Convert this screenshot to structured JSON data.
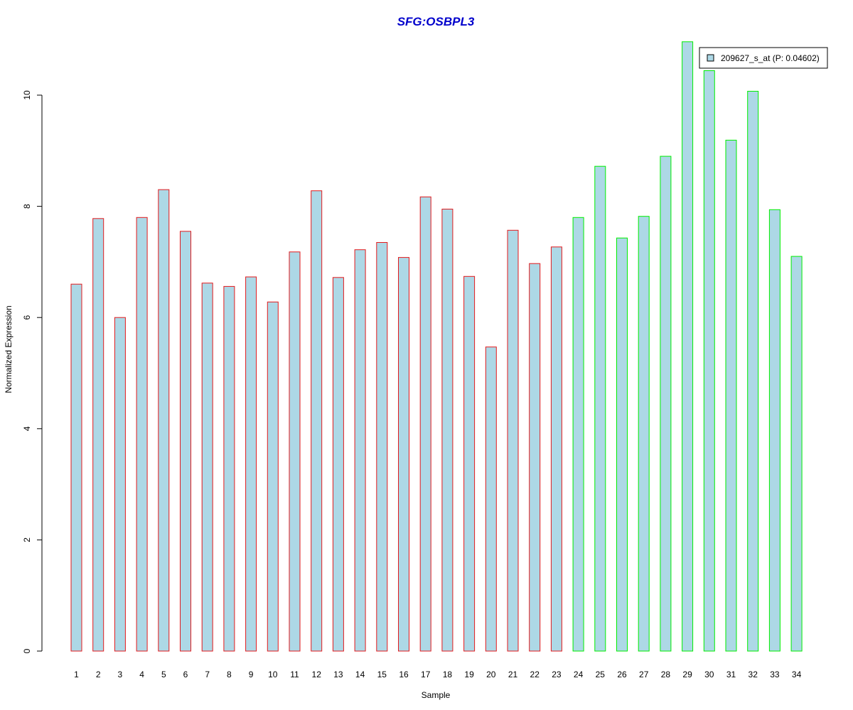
{
  "chart_data": {
    "type": "bar",
    "title": "SFG:OSBPL3",
    "xlabel": "Sample",
    "ylabel": "Normalized Expression",
    "ylim": [
      0,
      11
    ],
    "yticks": [
      0,
      2,
      4,
      6,
      8,
      10
    ],
    "categories": [
      "1",
      "2",
      "3",
      "4",
      "5",
      "6",
      "7",
      "8",
      "9",
      "10",
      "11",
      "12",
      "13",
      "14",
      "15",
      "16",
      "17",
      "18",
      "19",
      "20",
      "21",
      "22",
      "23",
      "24",
      "25",
      "26",
      "27",
      "28",
      "29",
      "30",
      "31",
      "32",
      "33",
      "34"
    ],
    "series": [
      {
        "name": "209627_s_at (P: 0.04602)",
        "values": [
          6.6,
          7.78,
          6.0,
          7.8,
          8.3,
          7.55,
          6.62,
          6.56,
          6.73,
          6.28,
          7.18,
          8.28,
          6.72,
          7.22,
          7.35,
          7.08,
          8.17,
          7.95,
          6.74,
          5.47,
          7.57,
          6.97,
          7.27,
          7.8,
          8.72,
          7.43,
          7.82,
          8.9,
          10.96,
          10.44,
          9.19,
          10.07,
          7.94,
          7.1
        ]
      }
    ],
    "groups": [
      {
        "samples": "1-23",
        "border_color": "#e31a1c"
      },
      {
        "samples": "24-34",
        "border_color": "#00ee00"
      }
    ],
    "bar_fill": "#add8e6",
    "title_color": "#0000cc",
    "legend_position": "top-right",
    "grid": false
  }
}
